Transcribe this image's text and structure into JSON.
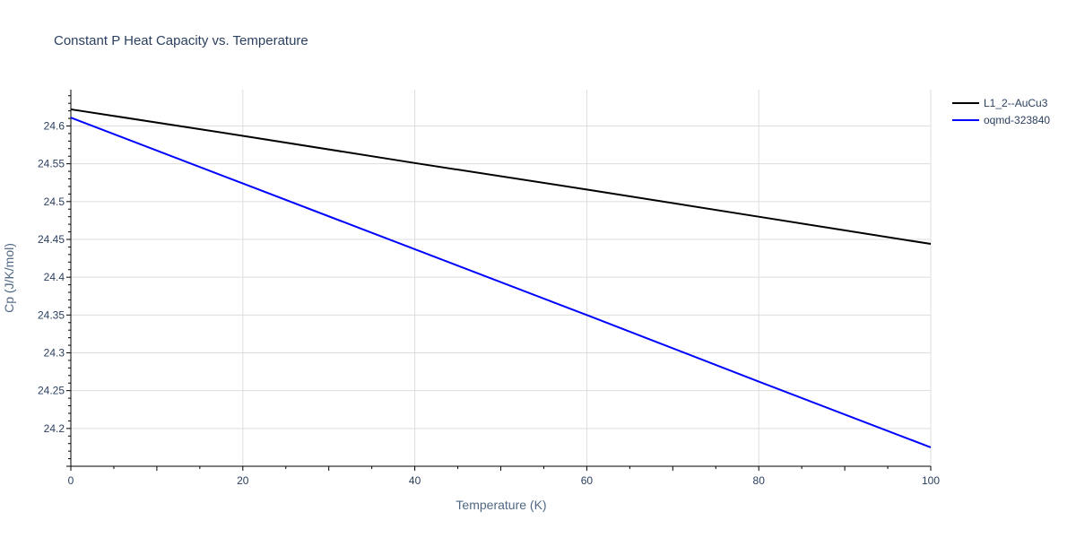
{
  "chart_data": {
    "type": "line",
    "title": "Constant P Heat Capacity vs. Temperature",
    "xlabel": "Temperature (K)",
    "ylabel": "Cp (J/K/mol)",
    "xlim": [
      0,
      100
    ],
    "ylim": [
      24.15,
      24.648
    ],
    "x_ticks": [
      0,
      20,
      40,
      60,
      80,
      100
    ],
    "x_tick_labels": [
      "0",
      "20",
      "40",
      "60",
      "80",
      "100"
    ],
    "y_ticks": [
      24.2,
      24.25,
      24.3,
      24.35,
      24.4,
      24.45,
      24.5,
      24.55,
      24.6
    ],
    "y_tick_labels": [
      "24.2",
      "24.25",
      "24.3",
      "24.35",
      "24.4",
      "24.45",
      "24.5",
      "24.55",
      "24.6"
    ],
    "grid": true,
    "legend_position": "top-right",
    "series": [
      {
        "name": "L1_2--AuCu3",
        "color": "#000000",
        "x": [
          0,
          20,
          40,
          60,
          80,
          100
        ],
        "y": [
          24.622,
          24.587,
          24.551,
          24.516,
          24.48,
          24.444
        ]
      },
      {
        "name": "oqmd-323840",
        "color": "#0000ff",
        "x": [
          0,
          20,
          40,
          60,
          80,
          100
        ],
        "y": [
          24.611,
          24.524,
          24.437,
          24.35,
          24.262,
          24.175
        ]
      }
    ]
  }
}
